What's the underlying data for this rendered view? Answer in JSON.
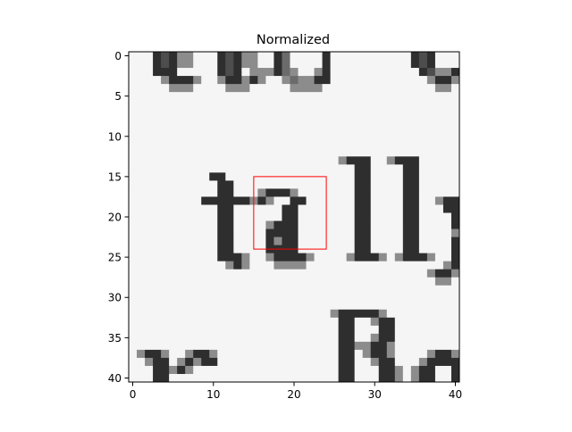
{
  "chart_data": {
    "type": "heatmap",
    "title": "Normalized",
    "colormap": "gray",
    "xlabel": "",
    "ylabel": "",
    "xlim": [
      -0.5,
      40.5
    ],
    "ylim": [
      40.5,
      -0.5
    ],
    "xticks": [
      0,
      10,
      20,
      30,
      40
    ],
    "yticks": [
      0,
      5,
      10,
      15,
      20,
      25,
      30,
      35,
      40
    ],
    "grid": false,
    "image_rows": [
      "WWWD7DLLWWWD7DLLWWDMWWWWDWWWWWWWWWWD7DWWW",
      "WWWD7DLLWWWD7DLLWWDMWWWWDWWWWWWWWWWD7DWWW",
      "WWWDDDWWWWWD7DWLLLDMLWWLDWWWWWWWWWWWD7LLD",
      "WWWWLDDDLWWLDDLDLWWLMLLDDWWWWWWWWWWWWLDDL",
      "WWWWWLLLWWWWLLLWWWWWLLLLWWWWWWWWWWWWWWLLW",
      "WWWWWWWWWWWWWWWWWWWWWWWWWWWWWWWWWWWWWWWWW",
      "WWWWWWWWWWWWWWWWWWWWWWWWWWWWWWWWWWWWWWWWW",
      "WWWWWWWWWWWWWWWWWWWWWWWWWWWWWWWWWWWWWWWWW",
      "WWWWWWWWWWWWWWWWWWWWWWWWWWWWWWWWWWWWWWWWW",
      "WWWWWWWWWWWWWWWWWWWWWWWWWWWWWWWWWWWWWWWWW",
      "WWWWWWWWWWWWWWWWWWWWWWWWWWWWWWWWWWWWWWWWW",
      "WWWWWWWWWWWWWWWWWWWWWWWWWWWWWWWWWWWWWWWWW",
      "WWWWWWWWWWWWWWWWWWWWWWWWWWWWWWWWWWWWWWWWW",
      "WWWWWWWWWWWWWWWWWWWWWWWWWWLDDDWWLDDDWWWWW",
      "WWWWWWWWWWWWWWWWWWWWWWWWWWWWDDWWWWDDWWWWW",
      "WWWWWWWWWWDDWWWWWWWWWWWWWWWWDDWWWWDDWWWWW",
      "WWWWWWWWWWWDDWWWWWWWWWWWWWWWDDWWWWDDWWWWW",
      "WWWWWWWWWWWDDWWWLDDDLWWWWWWWDDWWWWDDWWWWW",
      "WWWWWWWWWDDDDDDLDLWWDDWWWWWWDDWWWWDDWWLDD",
      "WWWWWWWWWWWDDWWWWWWDDWWWWWWWDDWWWWDDWWWDD",
      "WWWWWWWWWWWDDWWWWWWDDWWWWWWWDDWWWWDDWWWWD",
      "WWWWWWWWWWWDDWWWWLDDDWWWWWWWDDWWWWDDWWWWD",
      "WWWWWWWWWWWDDWWWWDDDDWWWWWWWDDWWWWDDWWWWL",
      "WWWWWWWWWWWDDWWWWDLDDWWWWWWWDDWWWWDDWWWWD",
      "WWWWWWWWWWWDDWWWWDDDDWWWWWWWDDWWWWDDWWWWD",
      "WWWWWWWWWWWDDDLWWLDDDDLWWWWLDDDLWLDDDLWWD",
      "WWWWWWWWWWWWLDLWWWLLLLWWWWWWWWWWWWWWWWWLD",
      "WWWWWWWWWWWWWWWWWWWWWWWWWWWWWWWWWWWWWLDDL",
      "WWWWWWWWWWWWWWWWWWWWWWWWWWWWWWWWWWWWWWLLW",
      "WWWWWWWWWWWWWWWWWWWWWWWWWWWWWWWWWWWWWWWWW",
      "WWWWWWWWWWWWWWWWWWWWWWWWWWWWWWWWWWWWWWWWW",
      "WWWWWWWWWWWWWWWWWWWWWWWWWWWWWWWWWWWWWWWWW",
      "WWWWWWWWWWWWWWWWWWWWWWWWWLDDDDDLWWWWWWWWW",
      "WWWWWWWWWWWWWWWWWWWWWWWWWWDDWWLDDWWWWWWWW",
      "WWWWWWWWWWWWWWWWWWWWWWWWWWDDWWWDDWWWWWWWW",
      "WWWWWWWWWWWWWWWWWWWWWWWWWWDDWWLDDWWWWWWWW",
      "WWWWWWWWWWWWWWWWWWWWWWWWWWDDLLDDLWWWWWWWW",
      "WLDDLWWLDDLWWWWWWWWWWWWWWWDDWLDDLWWWWLDDL",
      "WWLDDWLDLDDWWWWWWWWWWWWWWWDDWWLDDWWWLDDDD",
      "WWWDDLDLWWWWWWWWWWWWWWWWWWDDWWWDDLWLDDWWD",
      "WWWDDWWWWWWWWWWWWWWWWWWWWWDDWWWDDLWLDDWWD"
    ],
    "shades": {
      "W": 0.96,
      "L": 0.55,
      "D": 0.18,
      "7": 0.3,
      "M": 0.42
    },
    "annotation_box": {
      "x0": 15,
      "y0": 15,
      "x1": 24,
      "y1": 24,
      "color": "#ff0000"
    }
  }
}
